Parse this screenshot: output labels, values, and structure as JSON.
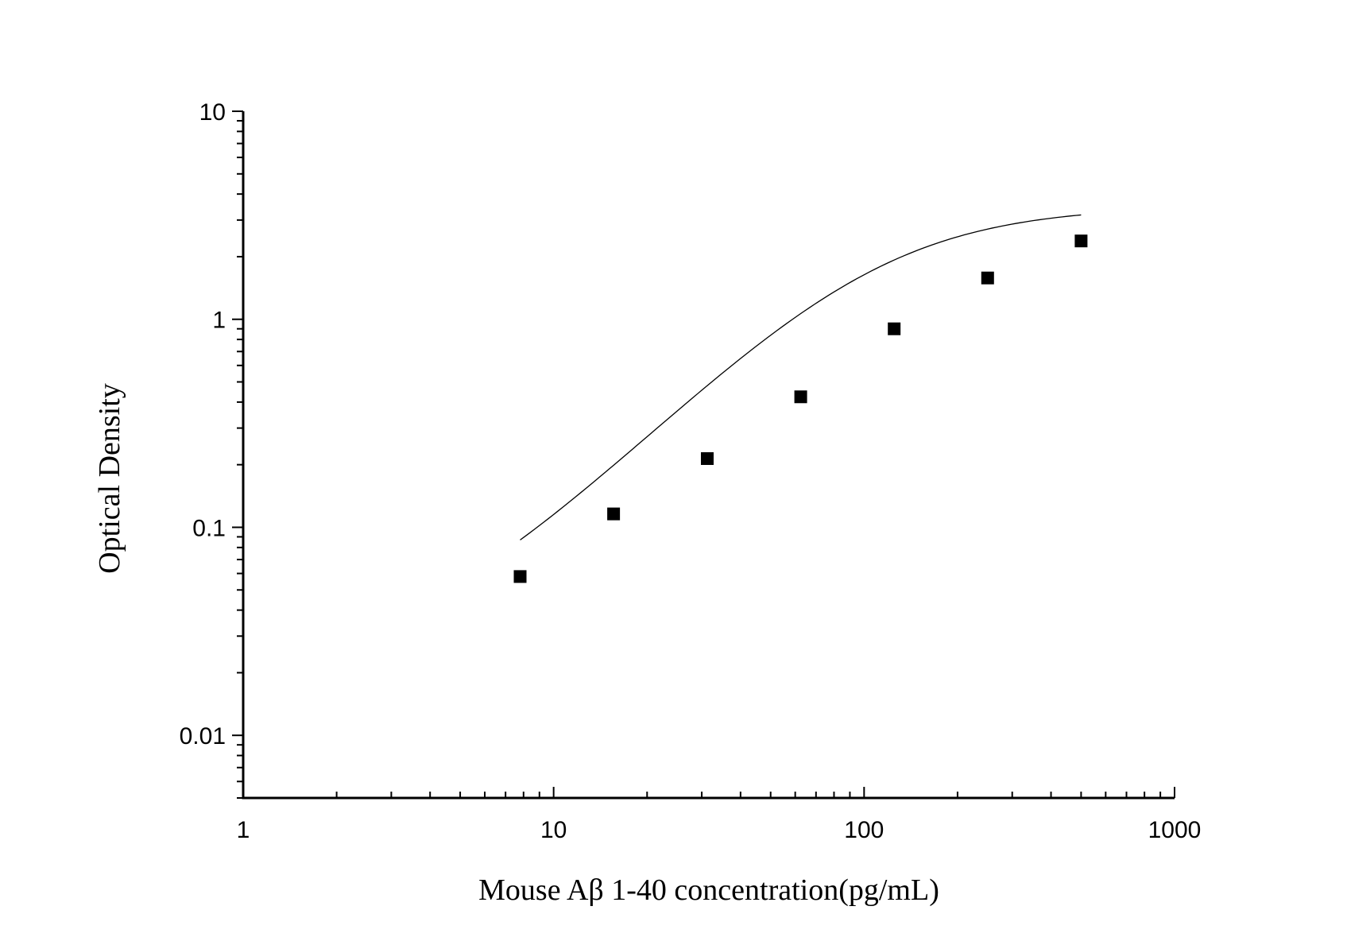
{
  "chart_data": {
    "type": "scatter",
    "xlabel": "Mouse Aβ  1-40 concentration(pg/mL)",
    "ylabel": "Optical Density",
    "xscale": "log",
    "yscale": "log",
    "xlim": [
      1,
      1000
    ],
    "ylim": [
      0.005,
      10
    ],
    "x_tick_labels": [
      "1",
      "10",
      "100",
      "1000"
    ],
    "y_tick_labels": [
      "0.01",
      "0.1",
      "1",
      "10"
    ],
    "grid": false,
    "legend": "none",
    "marker": "filled-square",
    "fit": "four-parameter logistic curve",
    "series": [
      {
        "x": [
          7.8,
          15.6,
          31.25,
          62.5,
          125,
          250,
          500
        ],
        "y": [
          0.058,
          0.116,
          0.214,
          0.424,
          0.9,
          1.58,
          2.38
        ]
      }
    ],
    "colors": {
      "marker": "#000000",
      "line": "#000000",
      "axes": "#000000",
      "background": "#ffffff"
    }
  }
}
